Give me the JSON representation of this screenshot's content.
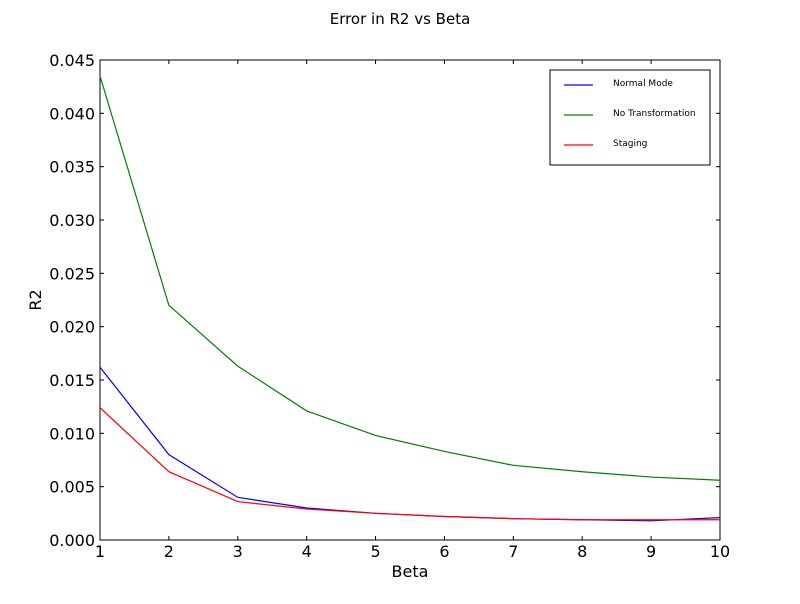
{
  "chart_data": {
    "type": "line",
    "title": "Error in R2 vs Beta",
    "xlabel": "Beta",
    "ylabel": "R2",
    "x": [
      1,
      2,
      3,
      4,
      5,
      6,
      7,
      8,
      9,
      10
    ],
    "xlim": [
      1,
      10
    ],
    "ylim": [
      0,
      0.045
    ],
    "xticks": [
      "1",
      "2",
      "3",
      "4",
      "5",
      "6",
      "7",
      "8",
      "9",
      "10"
    ],
    "yticks": [
      "0.000",
      "0.005",
      "0.010",
      "0.015",
      "0.020",
      "0.025",
      "0.030",
      "0.035",
      "0.040",
      "0.045"
    ],
    "grid": false,
    "legend_position": "top-right",
    "series": [
      {
        "name": "Normal Mode",
        "color": "#0000ff",
        "values": [
          0.0162,
          0.008,
          0.004,
          0.003,
          0.0025,
          0.0022,
          0.002,
          0.0019,
          0.0018,
          0.0021
        ]
      },
      {
        "name": "No Transformation",
        "color": "#008000",
        "values": [
          0.0435,
          0.022,
          0.0163,
          0.0121,
          0.0098,
          0.0083,
          0.007,
          0.0064,
          0.0059,
          0.0056
        ]
      },
      {
        "name": "Staging",
        "color": "#ff0000",
        "values": [
          0.0124,
          0.0064,
          0.0036,
          0.0029,
          0.0025,
          0.0022,
          0.002,
          0.0019,
          0.0019,
          0.0019
        ]
      }
    ]
  }
}
